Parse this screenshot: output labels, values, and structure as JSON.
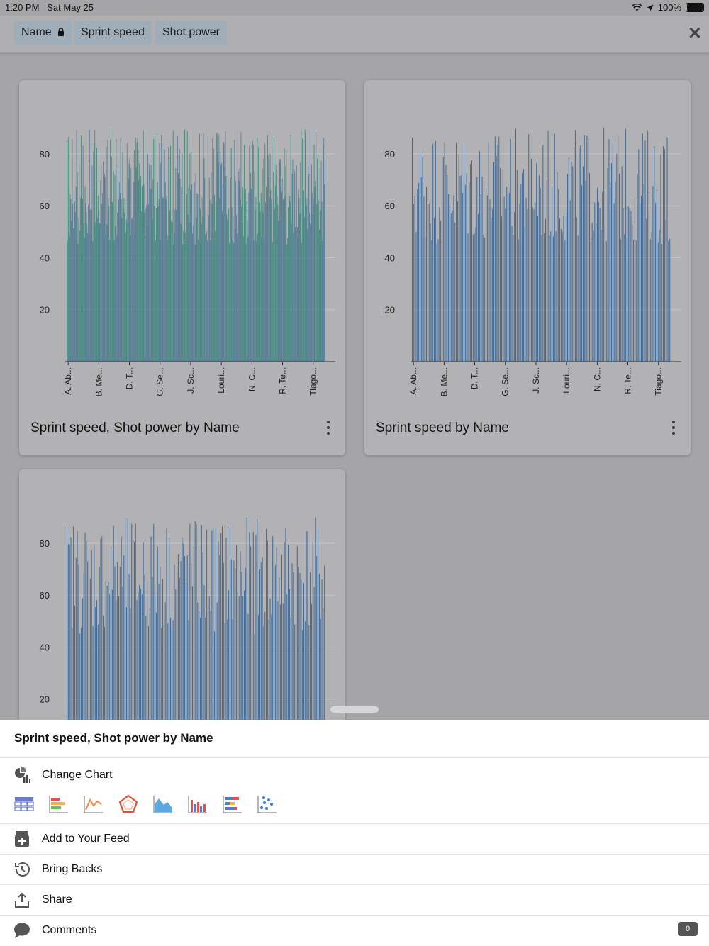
{
  "status_bar": {
    "time": "1:20 PM",
    "date": "Sat May 25",
    "battery": "100%"
  },
  "filters": [
    {
      "label": "Name"
    },
    {
      "label": "Sprint speed"
    },
    {
      "label": "Shot power"
    }
  ],
  "chart_data": [
    {
      "type": "bar",
      "title": "Sprint speed, Shot power by Name",
      "yticks": [
        20,
        40,
        60,
        80
      ],
      "ylim": [
        0,
        92
      ],
      "categories": [
        "A. Ab...",
        "B. Me...",
        "D. T...",
        "G. Se...",
        "J. Sc...",
        "Louri...",
        "N. C...",
        "R. Te...",
        "Tiago..."
      ],
      "series": [
        {
          "color": "#3b8a77"
        },
        {
          "color": "#2f5d8f"
        }
      ]
    },
    {
      "type": "bar",
      "title": "Sprint speed by Name",
      "yticks": [
        20,
        40,
        60,
        80
      ],
      "ylim": [
        0,
        92
      ],
      "categories": [
        "A. Ab...",
        "B. Me...",
        "D. T...",
        "G. Se...",
        "J. Sc...",
        "Louri...",
        "N. C...",
        "R. Te...",
        "Tiago..."
      ],
      "series": [
        {
          "color": "#2f5d8f"
        }
      ]
    },
    {
      "type": "bar",
      "title": "",
      "yticks": [
        20,
        40,
        60,
        80
      ],
      "ylim": [
        0,
        92
      ],
      "categories": [],
      "series": [
        {
          "color": "#2f5d8f"
        }
      ]
    }
  ],
  "sheet": {
    "title": "Sprint speed, Shot power by Name",
    "change_chart": "Change Chart",
    "chart_types": [
      "table-icon",
      "bar-icon",
      "line-icon",
      "radar-icon",
      "area-icon",
      "column-icon",
      "stacked-bar-icon",
      "scatter-icon"
    ],
    "actions": [
      {
        "label": "Add to Your Feed",
        "icon": "feed-add-icon"
      },
      {
        "label": "Bring Backs",
        "icon": "history-icon"
      },
      {
        "label": "Share",
        "icon": "share-icon"
      },
      {
        "label": "Comments",
        "icon": "comment-icon"
      }
    ],
    "comments_count": "0"
  }
}
